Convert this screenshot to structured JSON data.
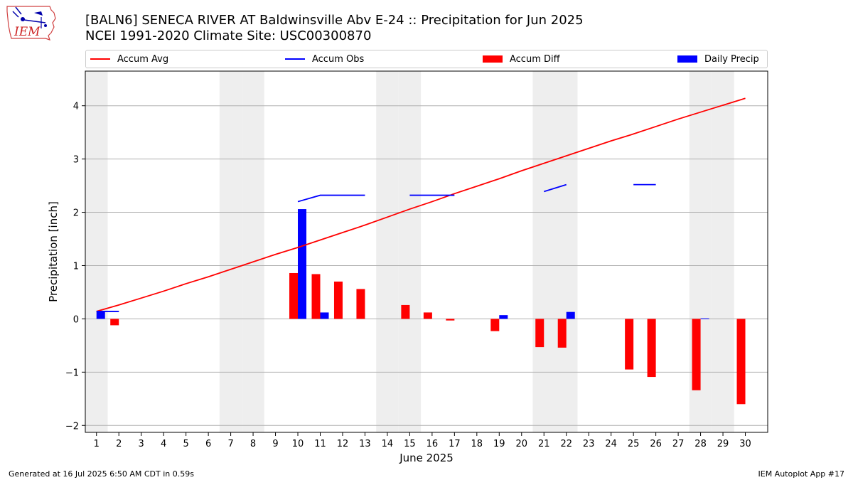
{
  "header": {
    "title_line1": "[BALN6] SENECA RIVER  AT Baldwinsville Abv E-24 :: Precipitation for Jun 2025",
    "title_line2": "NCEI 1991-2020 Climate Site: USC00300870",
    "logo_text": "IEM"
  },
  "footer": {
    "left": "Generated at 16 Jul 2025 6:50 AM CDT in 0.59s",
    "right": "IEM Autoplot App #17"
  },
  "legend": {
    "accum_avg": "Accum Avg",
    "accum_obs": "Accum Obs",
    "accum_diff": "Accum Diff",
    "daily_precip": "Daily Precip"
  },
  "colors": {
    "accum_avg": "#ff0000",
    "accum_obs": "#0000ff",
    "accum_diff": "#ff0000",
    "daily_precip": "#0000ff",
    "weekend_shade": "#eeeeee",
    "grid": "#b0b0b0"
  },
  "chart_data": {
    "type": "bar",
    "xlabel": "June 2025",
    "ylabel": "Precipitation [inch]",
    "xlim": [
      0.5,
      31.0
    ],
    "ylim": [
      -2.13,
      4.65
    ],
    "x_ticks": [
      1,
      2,
      3,
      4,
      5,
      6,
      7,
      8,
      9,
      10,
      11,
      12,
      13,
      14,
      15,
      16,
      17,
      18,
      19,
      20,
      21,
      22,
      23,
      24,
      25,
      26,
      27,
      28,
      29,
      30
    ],
    "y_ticks": [
      -2,
      -1,
      0,
      1,
      2,
      3,
      4
    ],
    "y_tick_labels": [
      "−2",
      "−1",
      "0",
      "1",
      "2",
      "3",
      "4"
    ],
    "grid": "horizontal",
    "legend_position": "top",
    "weekend_shaded_days": [
      1,
      7,
      8,
      14,
      15,
      21,
      22,
      28,
      29
    ],
    "accum_avg": [
      0.14,
      0.26,
      0.39,
      0.52,
      0.66,
      0.79,
      0.93,
      1.07,
      1.21,
      1.34,
      1.48,
      1.62,
      1.76,
      1.91,
      2.06,
      2.2,
      2.35,
      2.49,
      2.63,
      2.78,
      2.92,
      3.06,
      3.2,
      3.34,
      3.47,
      3.61,
      3.75,
      3.88,
      4.01,
      4.14
    ],
    "accum_obs_segments": [
      {
        "x": [
          1,
          2
        ],
        "y": [
          0.14,
          0.14
        ]
      },
      {
        "x": [
          10,
          11,
          12,
          13
        ],
        "y": [
          2.2,
          2.32,
          2.32,
          2.32
        ]
      },
      {
        "x": [
          15,
          16,
          17
        ],
        "y": [
          2.32,
          2.32,
          2.32
        ]
      },
      {
        "x": [
          21,
          22
        ],
        "y": [
          2.39,
          2.52
        ]
      },
      {
        "x": [
          25,
          26
        ],
        "y": [
          2.52,
          2.52
        ]
      }
    ],
    "accum_diff": [
      {
        "day": 2,
        "value": -0.12
      },
      {
        "day": 10,
        "value": 0.86
      },
      {
        "day": 11,
        "value": 0.84
      },
      {
        "day": 12,
        "value": 0.7
      },
      {
        "day": 13,
        "value": 0.56
      },
      {
        "day": 15,
        "value": 0.26
      },
      {
        "day": 16,
        "value": 0.12
      },
      {
        "day": 17,
        "value": -0.03
      },
      {
        "day": 19,
        "value": -0.23
      },
      {
        "day": 21,
        "value": -0.53
      },
      {
        "day": 22,
        "value": -0.54
      },
      {
        "day": 25,
        "value": -0.95
      },
      {
        "day": 26,
        "value": -1.09
      },
      {
        "day": 28,
        "value": -1.34
      },
      {
        "day": 30,
        "value": -1.6
      }
    ],
    "daily_precip": [
      {
        "day": 1,
        "value": 0.14
      },
      {
        "day": 10,
        "value": 2.06
      },
      {
        "day": 11,
        "value": 0.12
      },
      {
        "day": 19,
        "value": 0.07
      },
      {
        "day": 22,
        "value": 0.13
      },
      {
        "day": 28,
        "value": 0.01
      }
    ]
  }
}
